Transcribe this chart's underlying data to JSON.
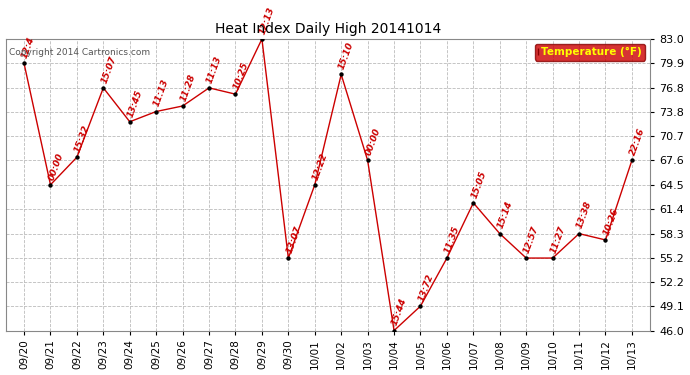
{
  "title": "Heat Index Daily High 20141014",
  "copyright": "Copyright 2014 Cartronics.com",
  "legend_label": "Temperature (°F)",
  "x_labels": [
    "09/20",
    "09/21",
    "09/22",
    "09/23",
    "09/24",
    "09/25",
    "09/26",
    "09/27",
    "09/28",
    "09/29",
    "09/30",
    "10/01",
    "10/02",
    "10/03",
    "10/04",
    "10/05",
    "10/06",
    "10/07",
    "10/08",
    "10/09",
    "10/10",
    "10/11",
    "10/12",
    "10/13"
  ],
  "y_values": [
    79.9,
    64.5,
    68.0,
    76.8,
    72.5,
    73.8,
    74.5,
    76.8,
    76.0,
    83.0,
    55.2,
    64.5,
    78.5,
    67.6,
    46.0,
    49.1,
    55.2,
    62.2,
    58.3,
    55.2,
    55.2,
    58.3,
    57.5,
    67.6
  ],
  "time_labels": [
    "12:4",
    "00:00",
    "15:32",
    "15:07",
    "13:45",
    "11:13",
    "11:28",
    "11:13",
    "10:25",
    "12:13",
    "13:07",
    "12:22",
    "15:10",
    "00:00",
    "15:44",
    "13:72",
    "11:35",
    "15:05",
    "15:14",
    "12:57",
    "11:27",
    "13:38",
    "10:26",
    "22:16"
  ],
  "ylim_min": 46.0,
  "ylim_max": 83.0,
  "yticks": [
    46.0,
    49.1,
    52.2,
    55.2,
    58.3,
    61.4,
    64.5,
    67.6,
    70.7,
    73.8,
    76.8,
    79.9,
    83.0
  ],
  "line_color": "#cc0000",
  "marker_color": "#000000",
  "label_color": "#cc0000",
  "bg_color": "#ffffff",
  "grid_color": "#bbbbbb",
  "legend_bg": "#cc0000",
  "legend_text_color": "#ffff00",
  "fig_width": 6.9,
  "fig_height": 3.75,
  "dpi": 100
}
